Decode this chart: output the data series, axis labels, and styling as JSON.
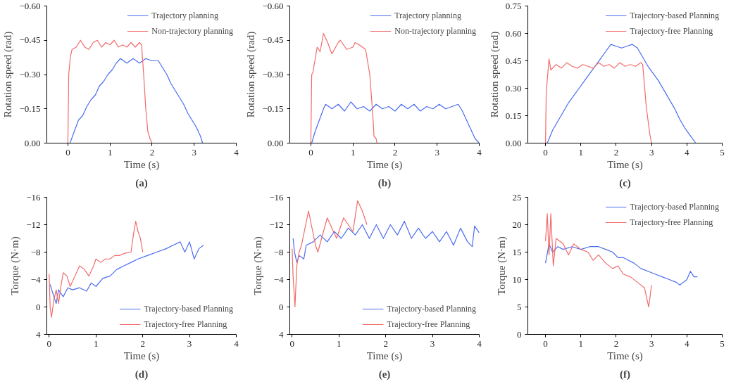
{
  "chart_data": [
    {
      "type": "line",
      "title": "(a)",
      "xlabel": "Time (s)",
      "ylabel": "Rotation speed (rad)",
      "xlim": [
        -0.5,
        4
      ],
      "xticks": [
        0,
        1,
        2,
        3,
        4
      ],
      "ylim": [
        0,
        -0.6
      ],
      "yticks": [
        {
          "value": 0,
          "label": "0.00"
        },
        {
          "value": -0.15,
          "label": "−0.15"
        },
        {
          "value": -0.3,
          "label": "−0.30"
        },
        {
          "value": -0.45,
          "label": "−0.45"
        },
        {
          "value": -0.6,
          "label": "−0.60"
        }
      ],
      "grid": false,
      "legend": "top right",
      "line_style": "solid",
      "series": [
        {
          "name": "Trajectory planning",
          "color": "#4a6cf0",
          "x": [
            0.05,
            0.15,
            0.25,
            0.35,
            0.45,
            0.55,
            0.65,
            0.75,
            0.85,
            0.95,
            1.05,
            1.15,
            1.25,
            1.4,
            1.55,
            1.7,
            1.85,
            2.0,
            2.15,
            2.25,
            2.35,
            2.45,
            2.55,
            2.65,
            2.75,
            2.85,
            2.95,
            3.05,
            3.15,
            3.2
          ],
          "values": [
            0.0,
            -0.05,
            -0.1,
            -0.12,
            -0.16,
            -0.19,
            -0.21,
            -0.25,
            -0.27,
            -0.3,
            -0.32,
            -0.35,
            -0.37,
            -0.35,
            -0.37,
            -0.35,
            -0.37,
            -0.36,
            -0.36,
            -0.33,
            -0.3,
            -0.26,
            -0.23,
            -0.2,
            -0.17,
            -0.13,
            -0.1,
            -0.07,
            -0.03,
            0.0
          ]
        },
        {
          "name": "Non-trajectory planning",
          "color": "#f26a6a",
          "x": [
            0.0,
            0.02,
            0.06,
            0.1,
            0.2,
            0.3,
            0.4,
            0.5,
            0.6,
            0.7,
            0.8,
            0.9,
            1.0,
            1.1,
            1.2,
            1.3,
            1.4,
            1.5,
            1.6,
            1.7,
            1.75,
            1.8,
            1.85,
            1.9,
            1.95,
            2.0
          ],
          "values": [
            0.0,
            -0.3,
            -0.38,
            -0.41,
            -0.42,
            -0.45,
            -0.42,
            -0.41,
            -0.44,
            -0.45,
            -0.42,
            -0.44,
            -0.43,
            -0.45,
            -0.42,
            -0.43,
            -0.42,
            -0.44,
            -0.42,
            -0.44,
            -0.43,
            -0.3,
            -0.15,
            -0.05,
            -0.02,
            0.0
          ]
        }
      ]
    },
    {
      "type": "line",
      "title": "(b)",
      "xlabel": "Time (s)",
      "ylabel": "Rotation speed (rad)",
      "xlim": [
        -0.5,
        4
      ],
      "xticks": [
        0,
        1,
        2,
        3,
        4
      ],
      "ylim": [
        0,
        -0.6
      ],
      "yticks": [
        {
          "value": 0,
          "label": "0.00"
        },
        {
          "value": -0.15,
          "label": "−0.15"
        },
        {
          "value": -0.3,
          "label": "−0.30"
        },
        {
          "value": -0.45,
          "label": "−0.45"
        },
        {
          "value": -0.6,
          "label": "−0.60"
        }
      ],
      "grid": false,
      "legend": "top right",
      "line_style": "solid",
      "series": [
        {
          "name": "Trajectory planning",
          "color": "#4a6cf0",
          "x": [
            0.02,
            0.1,
            0.2,
            0.3,
            0.35,
            0.5,
            0.65,
            0.8,
            0.95,
            1.1,
            1.25,
            1.4,
            1.55,
            1.7,
            1.85,
            2.0,
            2.15,
            2.3,
            2.45,
            2.6,
            2.75,
            2.9,
            3.05,
            3.2,
            3.35,
            3.5,
            3.6,
            3.7,
            3.8,
            3.9,
            4.0
          ],
          "values": [
            0.0,
            -0.05,
            -0.1,
            -0.15,
            -0.17,
            -0.15,
            -0.17,
            -0.14,
            -0.18,
            -0.15,
            -0.16,
            -0.14,
            -0.17,
            -0.15,
            -0.16,
            -0.14,
            -0.17,
            -0.15,
            -0.17,
            -0.14,
            -0.16,
            -0.15,
            -0.17,
            -0.15,
            -0.16,
            -0.17,
            -0.14,
            -0.1,
            -0.06,
            -0.02,
            0.0
          ]
        },
        {
          "name": "Non-trajectory planning",
          "color": "#f26a6a",
          "x": [
            0.0,
            0.02,
            0.05,
            0.15,
            0.22,
            0.3,
            0.4,
            0.5,
            0.65,
            0.7,
            0.85,
            1.0,
            1.05,
            1.15,
            1.3,
            1.4,
            1.48,
            1.5,
            1.55,
            1.57
          ],
          "values": [
            0.0,
            -0.3,
            -0.31,
            -0.42,
            -0.4,
            -0.48,
            -0.44,
            -0.39,
            -0.44,
            -0.45,
            -0.41,
            -0.42,
            -0.44,
            -0.43,
            -0.41,
            -0.3,
            -0.1,
            -0.03,
            -0.02,
            0.0
          ]
        }
      ]
    },
    {
      "type": "line",
      "title": "(c)",
      "xlabel": "Time (s)",
      "ylabel": "Rotation speed (rad)",
      "xlim": [
        -0.5,
        5
      ],
      "xticks": [
        0,
        1,
        2,
        3,
        4,
        5
      ],
      "ylim": [
        0,
        0.75
      ],
      "yticks": [
        {
          "value": 0,
          "label": "0.00"
        },
        {
          "value": 0.15,
          "label": "0.15"
        },
        {
          "value": 0.3,
          "label": "0.30"
        },
        {
          "value": 0.45,
          "label": "0.45"
        },
        {
          "value": 0.6,
          "label": "0.60"
        },
        {
          "value": 0.75,
          "label": "0.75"
        }
      ],
      "grid": false,
      "legend": "top right",
      "line_style": "solid",
      "series": [
        {
          "name": "Trajectory-based Planning",
          "color": "#4a6cf0",
          "x": [
            0.05,
            0.2,
            0.35,
            0.5,
            0.65,
            0.8,
            0.95,
            1.1,
            1.25,
            1.4,
            1.55,
            1.7,
            1.85,
            2.0,
            2.15,
            2.3,
            2.45,
            2.6,
            2.75,
            2.9,
            3.05,
            3.2,
            3.35,
            3.5,
            3.65,
            3.8,
            3.95,
            4.1,
            4.25
          ],
          "values": [
            0.0,
            0.07,
            0.12,
            0.17,
            0.22,
            0.26,
            0.3,
            0.34,
            0.38,
            0.42,
            0.46,
            0.5,
            0.54,
            0.53,
            0.52,
            0.53,
            0.54,
            0.52,
            0.47,
            0.42,
            0.38,
            0.34,
            0.29,
            0.24,
            0.19,
            0.13,
            0.08,
            0.04,
            0.0
          ]
        },
        {
          "name": "Trajectory-free Planning",
          "color": "#f26a6a",
          "x": [
            0.0,
            0.02,
            0.1,
            0.15,
            0.3,
            0.45,
            0.6,
            0.75,
            0.9,
            1.05,
            1.2,
            1.35,
            1.5,
            1.65,
            1.8,
            1.95,
            2.1,
            2.25,
            2.4,
            2.55,
            2.7,
            2.75,
            2.85,
            2.95,
            3.0
          ],
          "values": [
            0.0,
            0.28,
            0.46,
            0.4,
            0.43,
            0.41,
            0.44,
            0.42,
            0.41,
            0.43,
            0.42,
            0.41,
            0.44,
            0.42,
            0.43,
            0.41,
            0.44,
            0.42,
            0.43,
            0.42,
            0.44,
            0.43,
            0.2,
            0.05,
            0.0
          ]
        }
      ]
    },
    {
      "type": "line",
      "title": "(d)",
      "xlabel": "Time (s)",
      "ylabel": "Torque (N·m)",
      "xlim": [
        -0.05,
        4
      ],
      "xticks": [
        0,
        1,
        2,
        3,
        4
      ],
      "ylim": [
        4,
        -16
      ],
      "yticks": [
        4,
        0,
        {
          "value": -4,
          "label": "−4"
        },
        {
          "value": -8,
          "label": "−8"
        },
        {
          "value": -12,
          "label": "−12"
        },
        {
          "value": -16,
          "label": "−16"
        }
      ],
      "grid": false,
      "legend": "bottom right",
      "line_style": "solid",
      "series": [
        {
          "name": "Trajectory-based Planning",
          "color": "#4a6cf0",
          "x": [
            0.02,
            0.1,
            0.15,
            0.2,
            0.3,
            0.4,
            0.5,
            0.65,
            0.8,
            0.9,
            1.0,
            1.15,
            1.3,
            1.45,
            1.6,
            1.75,
            1.9,
            2.1,
            2.3,
            2.5,
            2.65,
            2.8,
            2.9,
            3.0,
            3.1,
            3.2,
            3.3
          ],
          "values": [
            -3.3,
            -1.5,
            -0.5,
            -2.5,
            -1.5,
            -2.8,
            -2.5,
            -2.8,
            -2.3,
            -3.5,
            -3.0,
            -4.2,
            -4.5,
            -5.5,
            -6.0,
            -6.5,
            -7.0,
            -7.5,
            -8.0,
            -8.5,
            -9.0,
            -9.5,
            -8.0,
            -9.5,
            -7.0,
            -8.5,
            -9.0
          ]
        },
        {
          "name": "Trajectory-free Planning",
          "color": "#f26a6a",
          "x": [
            0.0,
            0.02,
            0.05,
            0.1,
            0.15,
            0.2,
            0.25,
            0.3,
            0.38,
            0.45,
            0.55,
            0.65,
            0.75,
            0.85,
            0.95,
            1.0,
            1.1,
            1.2,
            1.3,
            1.4,
            1.5,
            1.6,
            1.75,
            1.8,
            1.85,
            1.9,
            1.95,
            2.0
          ],
          "values": [
            -4.8,
            0.0,
            1.5,
            -1.0,
            -2.5,
            -0.5,
            -3.0,
            -5.0,
            -4.5,
            -3.0,
            -4.5,
            -6.0,
            -5.5,
            -4.5,
            -6.0,
            -7.0,
            -6.5,
            -7.0,
            -7.0,
            -7.5,
            -7.5,
            -7.8,
            -8.0,
            -10.5,
            -12.5,
            -11.0,
            -10.0,
            -8.0
          ]
        }
      ]
    },
    {
      "type": "line",
      "title": "(e)",
      "xlabel": "Time (s)",
      "ylabel": "Torque (N·m)",
      "xlim": [
        -0.05,
        4
      ],
      "xticks": [
        0,
        1,
        2,
        3,
        4
      ],
      "ylim": [
        4,
        -16
      ],
      "yticks": [
        4,
        0,
        {
          "value": -4,
          "label": "−4"
        },
        {
          "value": -8,
          "label": "−8"
        },
        {
          "value": -12,
          "label": "−12"
        },
        {
          "value": -16,
          "label": "−16"
        }
      ],
      "grid": false,
      "legend": "bottom right",
      "line_style": "solid",
      "series": [
        {
          "name": "Trajectory-based Planning",
          "color": "#4a6cf0",
          "x": [
            0.02,
            0.05,
            0.1,
            0.15,
            0.25,
            0.3,
            0.45,
            0.6,
            0.75,
            0.9,
            1.05,
            1.2,
            1.35,
            1.5,
            1.65,
            1.8,
            1.95,
            2.1,
            2.25,
            2.4,
            2.55,
            2.7,
            2.85,
            3.0,
            3.15,
            3.3,
            3.45,
            3.6,
            3.75,
            3.85,
            3.9,
            4.0
          ],
          "values": [
            -10.0,
            -8.0,
            -6.5,
            -7.5,
            -7.0,
            -9.0,
            -9.5,
            -10.5,
            -9.5,
            -11.0,
            -10.0,
            -11.5,
            -10.5,
            -12.0,
            -10.0,
            -12.0,
            -10.0,
            -12.0,
            -10.5,
            -12.5,
            -10.0,
            -11.5,
            -10.0,
            -11.0,
            -9.5,
            -11.0,
            -9.0,
            -11.5,
            -9.5,
            -8.8,
            -11.8,
            -10.8
          ]
        },
        {
          "name": "Trajectory-free Planning",
          "color": "#f26a6a",
          "x": [
            0.0,
            0.02,
            0.06,
            0.1,
            0.15,
            0.2,
            0.35,
            0.5,
            0.55,
            0.75,
            0.95,
            1.1,
            1.3,
            1.4,
            1.5,
            1.6
          ],
          "values": [
            -8.5,
            -4.5,
            0.0,
            -6.0,
            -8.0,
            -9.0,
            -14.0,
            -9.0,
            -8.0,
            -13.0,
            -10.0,
            -13.0,
            -11.0,
            -15.5,
            -14.0,
            -12.0
          ]
        }
      ]
    },
    {
      "type": "line",
      "title": "(f)",
      "xlabel": "Time (s)",
      "ylabel": "Torque (N·m)",
      "xlim": [
        -0.5,
        5
      ],
      "xticks": [
        0,
        1,
        2,
        3,
        4,
        5
      ],
      "ylim": [
        0,
        25
      ],
      "yticks": [
        0,
        5,
        10,
        15,
        20,
        25
      ],
      "grid": false,
      "legend": "top right",
      "line_style": "solid",
      "series": [
        {
          "name": "Trajectory-based Planning",
          "color": "#4a6cf0",
          "x": [
            0.0,
            0.1,
            0.2,
            0.35,
            0.5,
            0.75,
            1.0,
            1.25,
            1.5,
            1.7,
            1.9,
            2.05,
            2.2,
            2.35,
            2.5,
            2.7,
            2.9,
            3.1,
            3.3,
            3.5,
            3.7,
            3.8,
            3.9,
            4.0,
            4.1,
            4.2,
            4.3
          ],
          "values": [
            13.0,
            16.5,
            15.0,
            16.0,
            15.5,
            16.0,
            15.5,
            16.0,
            16.0,
            15.5,
            15.0,
            14.0,
            14.0,
            13.5,
            13.0,
            12.0,
            11.5,
            11.0,
            10.5,
            10.0,
            9.5,
            9.0,
            9.5,
            10.0,
            11.5,
            10.5,
            10.5
          ]
        },
        {
          "name": "Trajectory-free Planning",
          "color": "#f26a6a",
          "x": [
            0.0,
            0.05,
            0.1,
            0.15,
            0.22,
            0.3,
            0.5,
            0.65,
            0.8,
            1.0,
            1.2,
            1.35,
            1.5,
            1.7,
            1.9,
            2.05,
            2.2,
            2.4,
            2.6,
            2.8,
            2.85,
            2.92,
            3.0
          ],
          "values": [
            17.0,
            22.0,
            14.5,
            22.0,
            12.5,
            17.5,
            16.5,
            14.5,
            16.5,
            15.5,
            15.0,
            13.5,
            14.5,
            13.0,
            12.0,
            12.5,
            11.0,
            10.5,
            9.5,
            8.5,
            7.0,
            5.0,
            9.0
          ]
        }
      ]
    }
  ]
}
